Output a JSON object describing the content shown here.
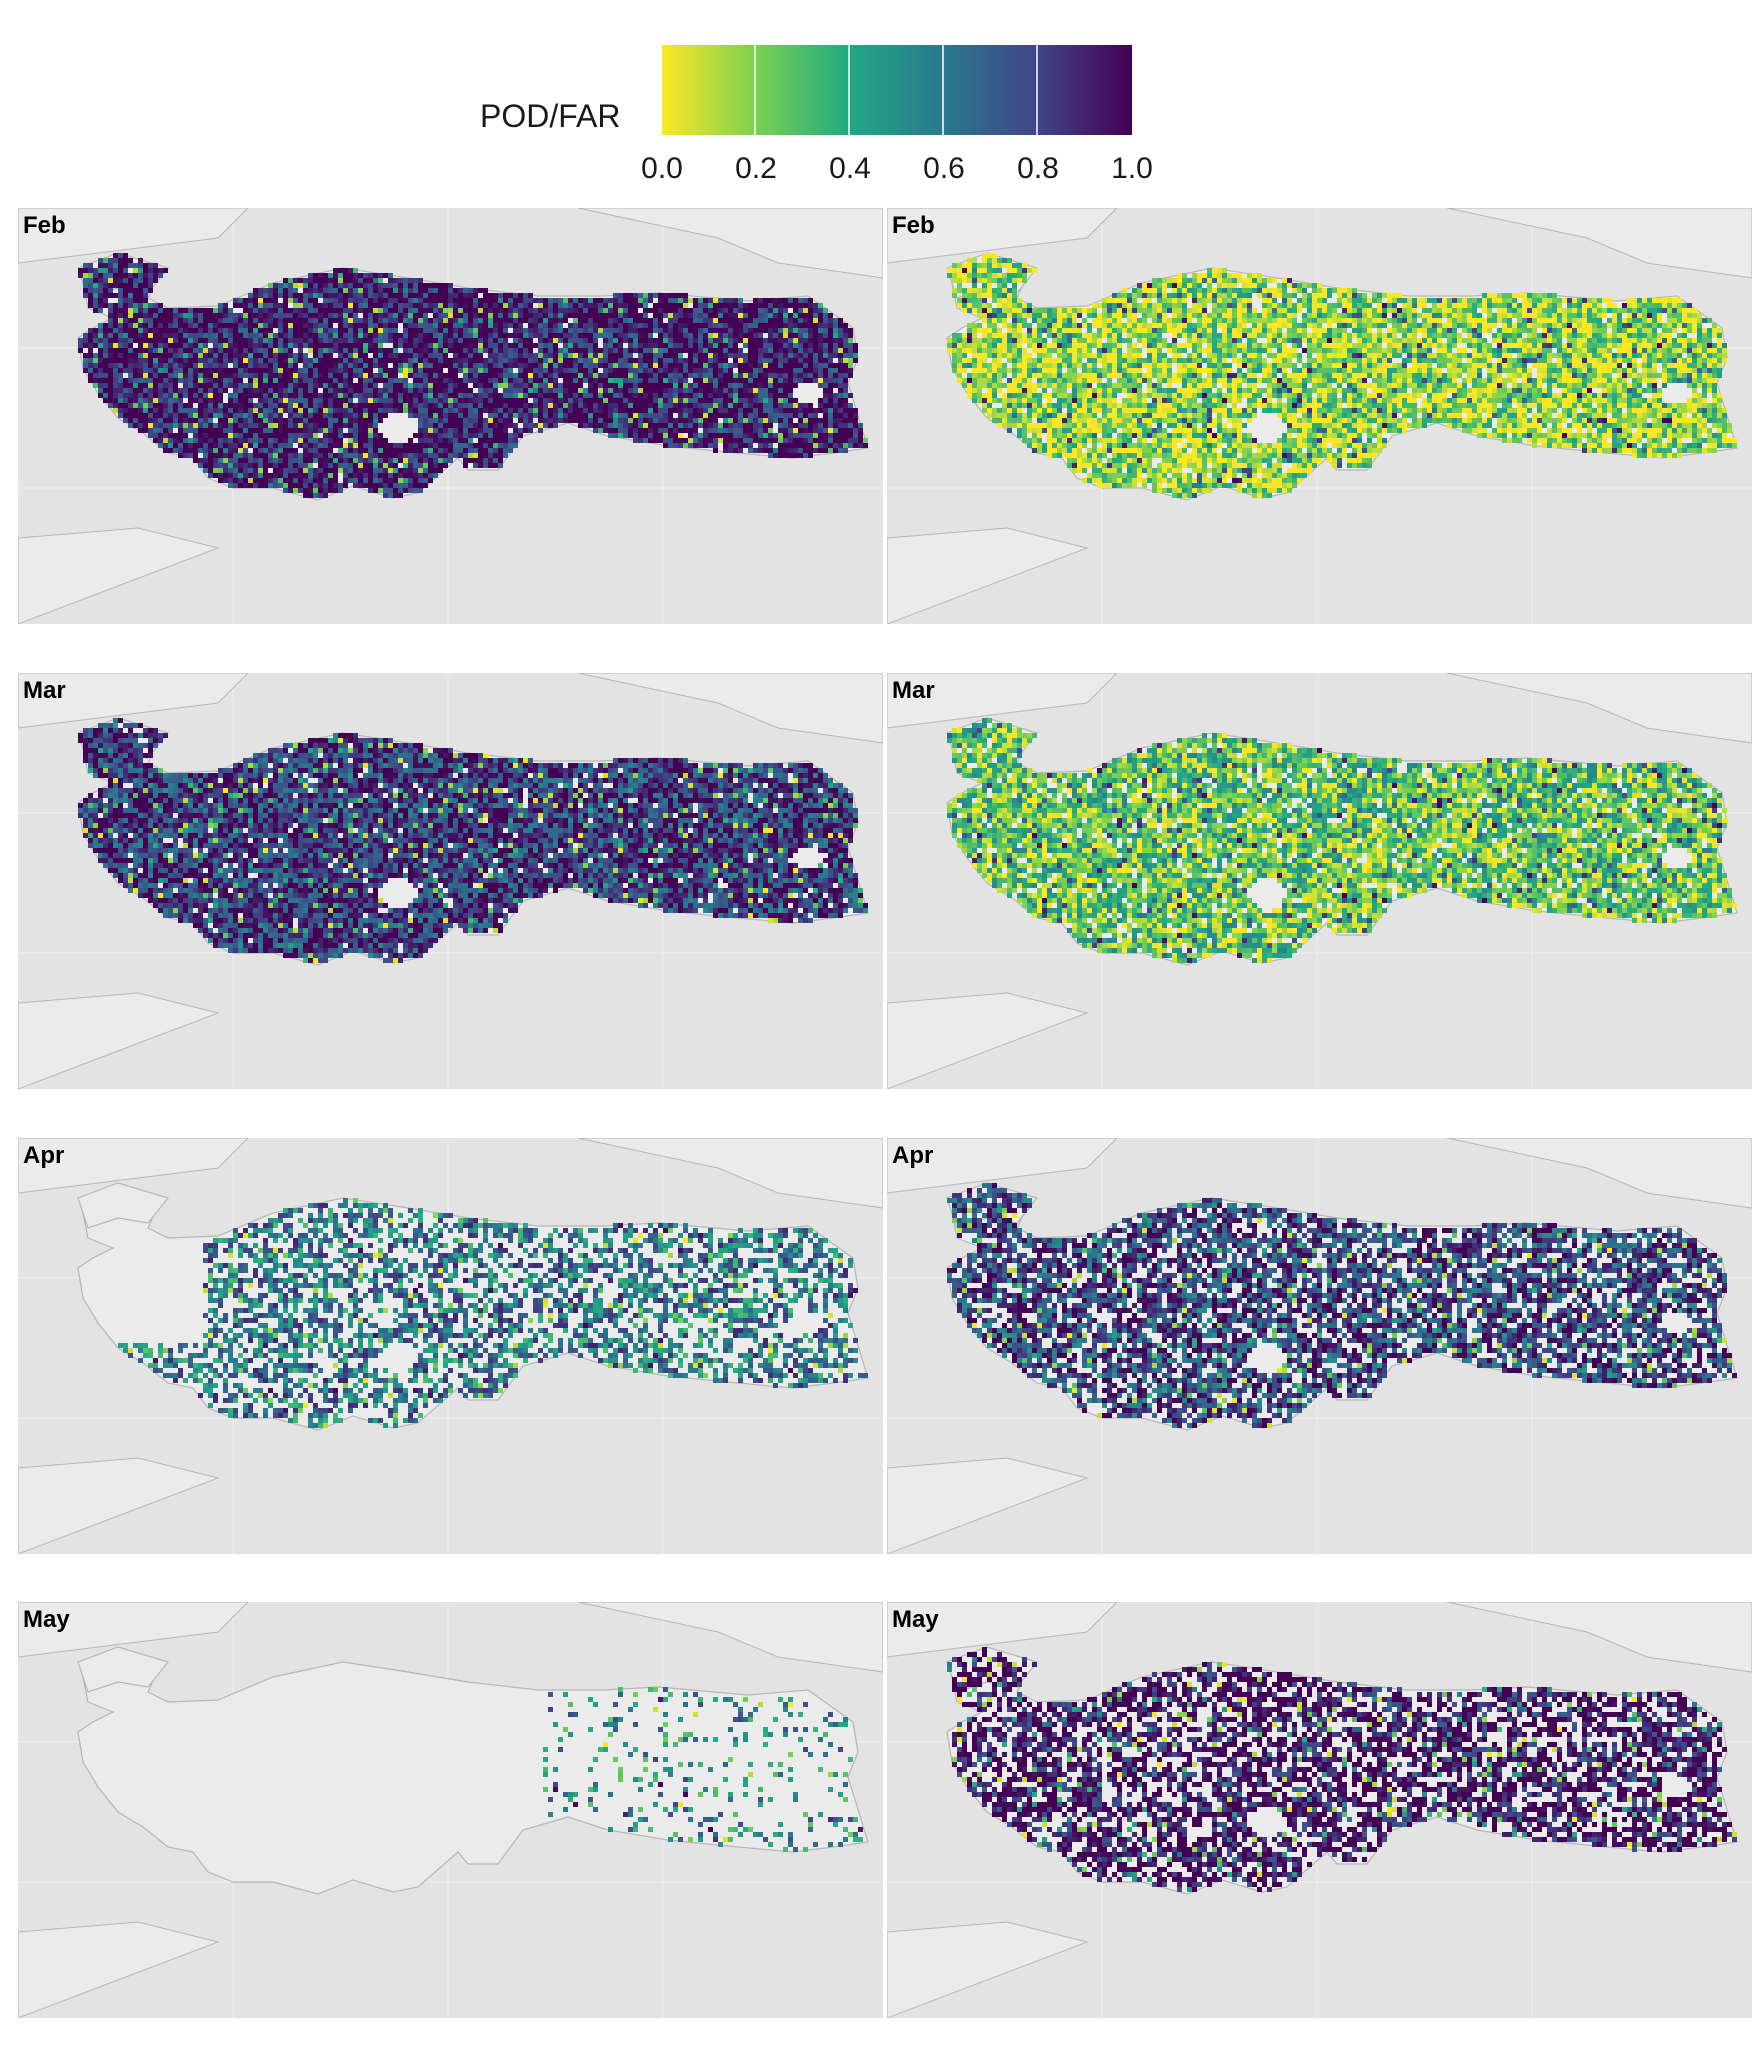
{
  "legend": {
    "title": "POD/FAR",
    "ticks": [
      "0.0",
      "0.2",
      "0.4",
      "0.6",
      "0.8",
      "1.0"
    ],
    "colorscale": [
      "#fde725",
      "#7ad151",
      "#22a884",
      "#2a788e",
      "#414487",
      "#440154"
    ]
  },
  "colors": {
    "background": "#e3e3e3",
    "land": "#ebebeb",
    "coast": "#b5b5b5",
    "grid": "#f2f2f2"
  },
  "panels": [
    {
      "label": "Feb",
      "metric": "POD",
      "coverage": 0.97,
      "dominant_value": 0.95
    },
    {
      "label": "Feb",
      "metric": "FAR",
      "coverage": 0.92,
      "dominant_value": 0.15
    },
    {
      "label": "Mar",
      "metric": "POD",
      "coverage": 0.95,
      "dominant_value": 0.85
    },
    {
      "label": "Mar",
      "metric": "FAR",
      "coverage": 0.9,
      "dominant_value": 0.25
    },
    {
      "label": "Apr",
      "metric": "POD",
      "coverage": 0.55,
      "dominant_value": 0.6
    },
    {
      "label": "Apr",
      "metric": "FAR",
      "coverage": 0.75,
      "dominant_value": 0.8
    },
    {
      "label": "May",
      "metric": "POD",
      "coverage": 0.15,
      "dominant_value": 0.5
    },
    {
      "label": "May",
      "metric": "FAR",
      "coverage": 0.65,
      "dominant_value": 1.0
    }
  ]
}
